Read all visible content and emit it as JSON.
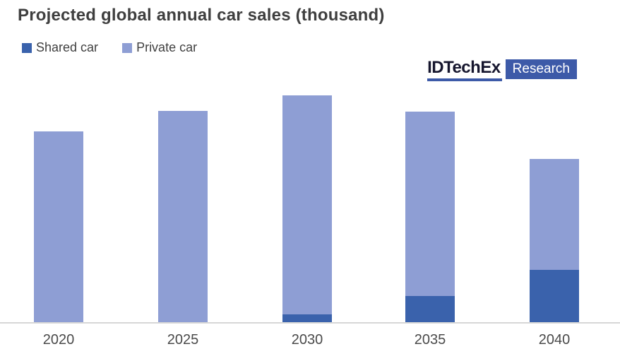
{
  "title": "Projected global annual car sales (thousand)",
  "legend": {
    "items": [
      {
        "label": "Shared car",
        "color": "#3a62ac"
      },
      {
        "label": "Private car",
        "color": "#8e9ed4"
      }
    ]
  },
  "logo": {
    "brand": "IDTechEx",
    "suffix": "Research",
    "accent_color": "#3d5aa8"
  },
  "colors": {
    "title_text": "#3f3f3f",
    "axis_label_text": "#4a4a4a",
    "axis_line": "#d6d6d6",
    "shared_car": "#3a62ac",
    "private_car": "#8e9ed4"
  },
  "chart_data": {
    "type": "bar",
    "stacked": true,
    "title": "Projected global annual car sales (thousand)",
    "categories": [
      "2020",
      "2025",
      "2030",
      "2035",
      "2040"
    ],
    "series": [
      {
        "name": "Shared car",
        "color": "#3a62ac",
        "values": [
          0,
          0,
          3700,
          12300,
          24700
        ]
      },
      {
        "name": "Private car",
        "color": "#8e9ed4",
        "values": [
          90000,
          99700,
          103300,
          87000,
          52300
        ]
      }
    ],
    "totals": [
      90000,
      99700,
      107000,
      99300,
      77000
    ],
    "xlabel": "",
    "ylabel": "",
    "ylim": [
      0,
      115000
    ],
    "y_axis_shown": false,
    "gridlines": false,
    "legend_position": "top-left"
  }
}
